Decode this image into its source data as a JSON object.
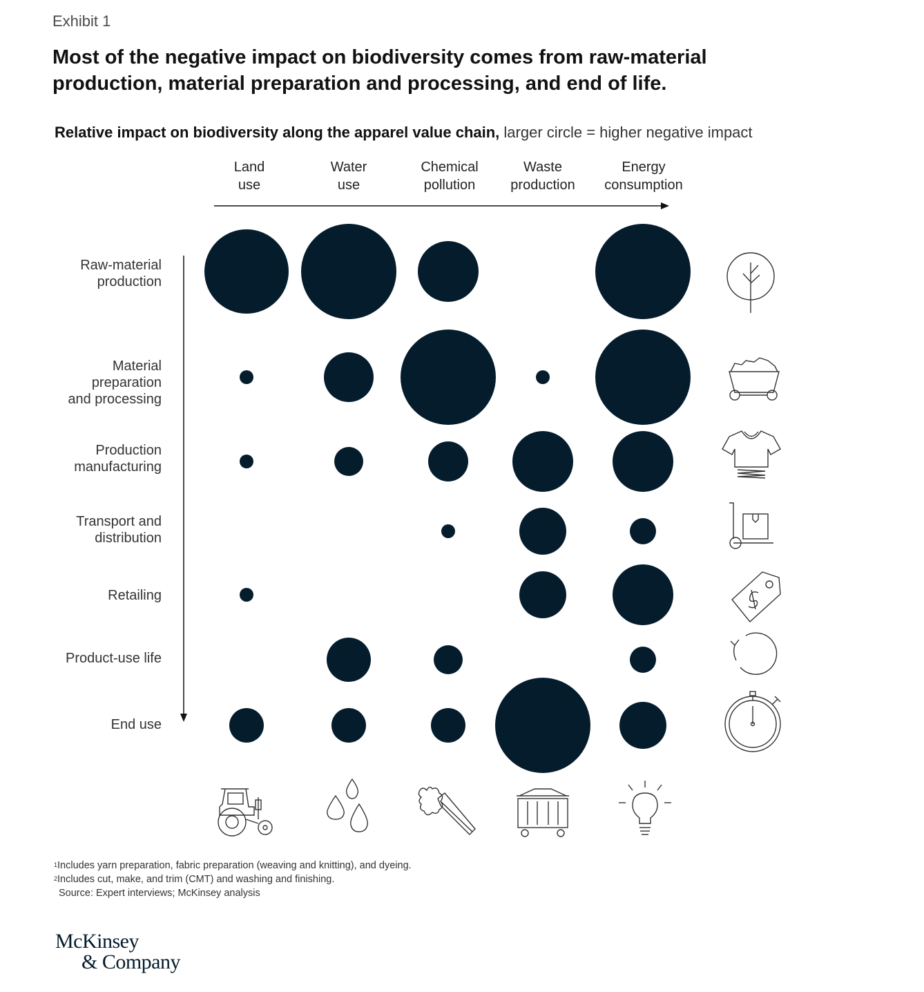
{
  "exhibit_label": "Exhibit 1",
  "title": "Most of the negative impact on biodiversity comes from raw-material production, material preparation and processing, and end of life.",
  "subtitle_bold": "Relative impact on biodiversity along the apparel value chain,",
  "subtitle_rest": " larger circle = higher negative impact",
  "footnotes": {
    "note1_marker": "1",
    "note1": "Includes yarn preparation, fabric preparation (weaving and knitting), and dyeing.",
    "note2_marker": "2",
    "note2": "Includes cut, make, and trim (CMT) and washing and finishing.",
    "source": "Source: Expert interviews; McKinsey analysis"
  },
  "logo": {
    "line1": "McKinsey",
    "line2": "& Company"
  },
  "colors": {
    "bubble": "#051c2c",
    "icon_stroke": "#333333",
    "axis": "#111111"
  },
  "column_icons": [
    "tractor-icon",
    "water-drops-icon",
    "spray-icon",
    "dumpster-icon",
    "lightbulb-icon"
  ],
  "row_icons": [
    "tree-icon",
    "mine-cart-icon",
    "tshirt-icon",
    "hand-truck-icon",
    "price-tag-icon",
    "cycle-icon",
    "stopwatch-icon"
  ],
  "chart_data": {
    "type": "bubble-matrix",
    "title": "Relative impact on biodiversity along the apparel value chain",
    "legend": "larger circle = higher negative impact",
    "columns": [
      "Land\nuse",
      "Water\nuse",
      "Chemical\npollution",
      "Waste\nproduction",
      "Energy\nconsumption"
    ],
    "rows": [
      "Raw-material\nproduction",
      "Material\npreparation\nand processing",
      "Production\nmanufacturing",
      "Transport and\ndistribution",
      "Retailing",
      "Product-use life",
      "End use"
    ],
    "relative_impact": [
      [
        61,
        69,
        44,
        0,
        69
      ],
      [
        10,
        36,
        69,
        10,
        69
      ],
      [
        10,
        21,
        29,
        44,
        44
      ],
      [
        0,
        0,
        10,
        34,
        19
      ],
      [
        10,
        0,
        0,
        34,
        44
      ],
      [
        0,
        32,
        21,
        0,
        19
      ],
      [
        25,
        25,
        25,
        69,
        34
      ]
    ]
  }
}
